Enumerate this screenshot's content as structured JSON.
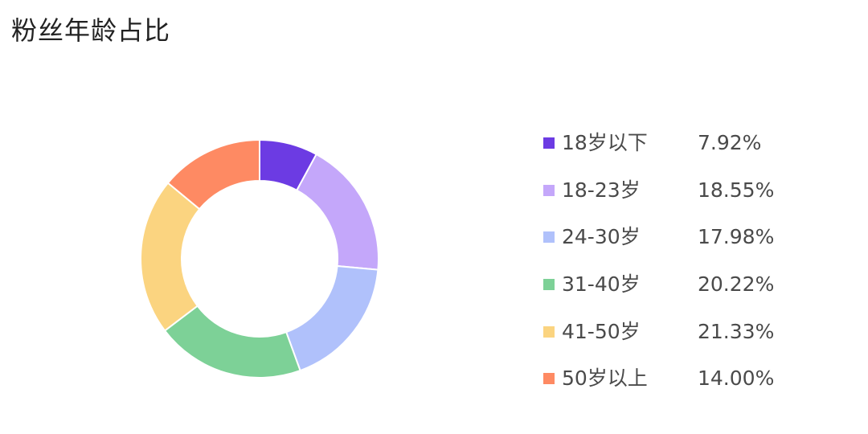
{
  "chart_data": {
    "type": "pie",
    "variant": "donut",
    "title": "粉丝年龄占比",
    "legend_position": "right",
    "slices": [
      {
        "label": "18岁以下",
        "value": 7.92,
        "display": "7.92%",
        "color": "#6c3be3"
      },
      {
        "label": "18-23岁",
        "value": 18.55,
        "display": "18.55%",
        "color": "#c4a7fa"
      },
      {
        "label": "24-30岁",
        "value": 17.98,
        "display": "17.98%",
        "color": "#b0c1fb"
      },
      {
        "label": "31-40岁",
        "value": 20.22,
        "display": "20.22%",
        "color": "#7dd197"
      },
      {
        "label": "41-50岁",
        "value": 21.33,
        "display": "21.33%",
        "color": "#fbd480"
      },
      {
        "label": "50岁以上",
        "value": 14.0,
        "display": "14.00%",
        "color": "#fe8a63"
      }
    ]
  }
}
